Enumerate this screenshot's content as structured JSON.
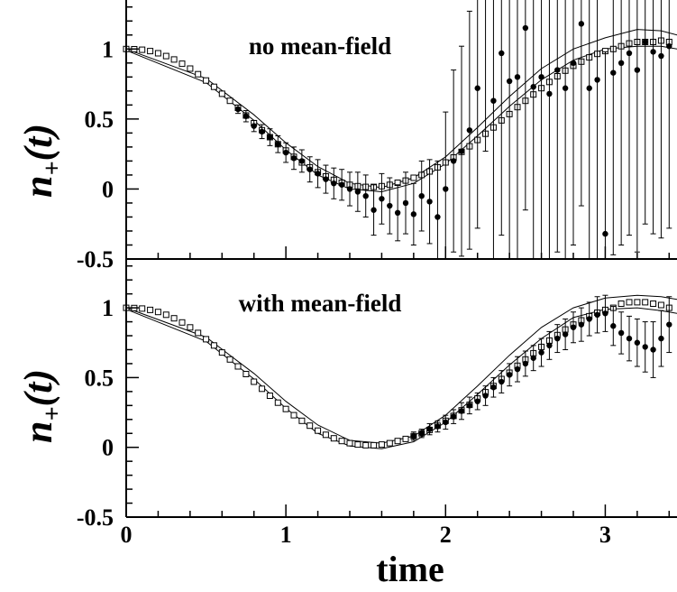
{
  "chart_data": [
    {
      "type": "scatter",
      "annotation": "no mean-field",
      "ylabel": "n+(t)",
      "ylabel_base": "n",
      "ylabel_sub": "+",
      "ylabel_rest": "(t)",
      "xlim": [
        0,
        3.5
      ],
      "ylim": [
        -0.5,
        1.35
      ],
      "yticks": [
        "-0.5",
        "0",
        "0.5",
        "1"
      ],
      "band": {
        "x": [
          0,
          0.5,
          0.8,
          1.0,
          1.2,
          1.4,
          1.6,
          1.8,
          2.0,
          2.2,
          2.4,
          2.6,
          2.8,
          3.0,
          3.2,
          3.35,
          3.45,
          3.5
        ],
        "upper": [
          1.0,
          0.79,
          0.53,
          0.33,
          0.16,
          0.04,
          0.01,
          0.08,
          0.23,
          0.44,
          0.66,
          0.86,
          1.0,
          1.08,
          1.14,
          1.13,
          1.1,
          1.08
        ],
        "lower": [
          0.99,
          0.76,
          0.49,
          0.28,
          0.1,
          0.0,
          -0.02,
          0.04,
          0.18,
          0.38,
          0.59,
          0.78,
          0.92,
          1.0,
          1.02,
          1.02,
          1.0,
          0.98
        ]
      },
      "squares": {
        "x": [
          0,
          0.05,
          0.1,
          0.15,
          0.2,
          0.25,
          0.3,
          0.35,
          0.4,
          0.45,
          0.5,
          0.55,
          0.6,
          0.65,
          0.7,
          0.75,
          0.8,
          0.85,
          0.9,
          0.95,
          1.0,
          1.05,
          1.1,
          1.15,
          1.2,
          1.25,
          1.3,
          1.35,
          1.4,
          1.45,
          1.5,
          1.55,
          1.6,
          1.65,
          1.7,
          1.75,
          1.8,
          1.85,
          1.9,
          1.95,
          2.0,
          2.05,
          2.1,
          2.15,
          2.2,
          2.25,
          2.3,
          2.35,
          2.4,
          2.45,
          2.5,
          2.55,
          2.6,
          2.65,
          2.7,
          2.75,
          2.8,
          2.85,
          2.9,
          2.95,
          3.0,
          3.05,
          3.1,
          3.15,
          3.2,
          3.25,
          3.3,
          3.35,
          3.4,
          3.45
        ],
        "y": [
          1.0,
          0.999,
          0.995,
          0.985,
          0.97,
          0.95,
          0.925,
          0.895,
          0.86,
          0.82,
          0.775,
          0.73,
          0.68,
          0.63,
          0.58,
          0.525,
          0.47,
          0.42,
          0.37,
          0.32,
          0.275,
          0.23,
          0.19,
          0.155,
          0.12,
          0.09,
          0.065,
          0.045,
          0.03,
          0.02,
          0.015,
          0.015,
          0.02,
          0.03,
          0.045,
          0.06,
          0.08,
          0.1,
          0.125,
          0.155,
          0.19,
          0.225,
          0.265,
          0.305,
          0.35,
          0.395,
          0.44,
          0.49,
          0.535,
          0.585,
          0.63,
          0.675,
          0.72,
          0.765,
          0.805,
          0.845,
          0.88,
          0.91,
          0.94,
          0.965,
          0.985,
          1.0,
          1.02,
          1.04,
          1.05,
          1.05,
          1.05,
          1.06,
          1.05,
          1.03
        ]
      },
      "points": {
        "x": [
          0.7,
          0.75,
          0.8,
          0.85,
          0.9,
          0.95,
          1.0,
          1.05,
          1.1,
          1.15,
          1.2,
          1.25,
          1.3,
          1.35,
          1.4,
          1.45,
          1.5,
          1.55,
          1.6,
          1.65,
          1.7,
          1.75,
          1.8,
          1.85,
          1.9,
          1.95,
          2.0,
          2.05,
          2.1,
          2.15,
          2.2,
          2.25,
          2.3,
          2.35,
          2.4,
          2.45,
          2.5,
          2.55,
          2.6,
          2.65,
          2.7,
          2.75,
          2.8,
          2.85,
          2.9,
          2.95,
          3.0,
          3.05,
          3.1,
          3.15,
          3.2,
          3.25,
          3.3,
          3.35,
          3.4,
          3.45
        ],
        "y": [
          0.57,
          0.52,
          0.45,
          0.41,
          0.37,
          0.32,
          0.26,
          0.22,
          0.2,
          0.14,
          0.11,
          0.07,
          0.04,
          0.03,
          0.0,
          -0.02,
          -0.05,
          -0.15,
          -0.07,
          -0.12,
          -0.17,
          -0.1,
          -0.18,
          -0.05,
          -0.09,
          -0.2,
          0.0,
          0.2,
          0.27,
          0.42,
          0.72,
          1.37,
          0.63,
          0.97,
          0.77,
          0.8,
          1.15,
          0.73,
          0.8,
          0.68,
          0.85,
          0.72,
          0.9,
          1.18,
          0.72,
          0.78,
          -0.32,
          0.83,
          0.9,
          0.97,
          0.85,
          1.05,
          0.98,
          0.95,
          1.02,
          1.0
        ],
        "err": [
          0.03,
          0.04,
          0.04,
          0.05,
          0.06,
          0.06,
          0.07,
          0.08,
          0.08,
          0.09,
          0.1,
          0.1,
          0.11,
          0.11,
          0.12,
          0.14,
          0.15,
          0.18,
          0.18,
          0.2,
          0.2,
          0.22,
          0.22,
          0.25,
          0.3,
          0.4,
          0.55,
          0.65,
          0.75,
          0.85,
          1.0,
          1.1,
          1.2,
          1.3,
          1.3,
          1.3,
          1.3,
          1.3,
          1.3,
          1.3,
          1.3,
          1.3,
          1.3,
          1.3,
          1.3,
          1.3,
          1.3,
          1.3,
          1.3,
          1.3,
          1.3,
          1.3,
          1.3,
          1.3,
          1.3,
          1.3
        ]
      }
    },
    {
      "type": "scatter",
      "annotation": "with mean-field",
      "ylabel": "n+(t)",
      "ylabel_base": "n",
      "ylabel_sub": "+",
      "ylabel_rest": "(t)",
      "xlabel": "time",
      "xlim": [
        0,
        3.5
      ],
      "ylim": [
        -0.5,
        1.35
      ],
      "yticks": [
        "-0.5",
        "0",
        "0.5",
        "1"
      ],
      "xticks": [
        "0",
        "1",
        "2",
        "3"
      ],
      "band": {
        "x": [
          0,
          0.5,
          0.8,
          1.0,
          1.2,
          1.4,
          1.6,
          1.8,
          2.0,
          2.2,
          2.4,
          2.6,
          2.8,
          3.0,
          3.2,
          3.35,
          3.45,
          3.5
        ],
        "upper": [
          1.0,
          0.79,
          0.53,
          0.33,
          0.16,
          0.05,
          0.03,
          0.08,
          0.23,
          0.44,
          0.66,
          0.86,
          1.0,
          1.07,
          1.09,
          1.08,
          1.06,
          1.05
        ],
        "lower": [
          0.99,
          0.76,
          0.49,
          0.28,
          0.1,
          0.01,
          -0.01,
          0.04,
          0.18,
          0.38,
          0.59,
          0.78,
          0.93,
          0.99,
          1.0,
          0.98,
          0.96,
          0.95
        ]
      },
      "squares": {
        "x": [
          0,
          0.05,
          0.1,
          0.15,
          0.2,
          0.25,
          0.3,
          0.35,
          0.4,
          0.45,
          0.5,
          0.55,
          0.6,
          0.65,
          0.7,
          0.75,
          0.8,
          0.85,
          0.9,
          0.95,
          1.0,
          1.05,
          1.1,
          1.15,
          1.2,
          1.25,
          1.3,
          1.35,
          1.4,
          1.45,
          1.5,
          1.55,
          1.6,
          1.65,
          1.7,
          1.75,
          1.8,
          1.85,
          1.9,
          1.95,
          2.0,
          2.05,
          2.1,
          2.15,
          2.2,
          2.25,
          2.3,
          2.35,
          2.4,
          2.45,
          2.5,
          2.55,
          2.6,
          2.65,
          2.7,
          2.75,
          2.8,
          2.85,
          2.9,
          2.95,
          3.0,
          3.05,
          3.1,
          3.15,
          3.2,
          3.25,
          3.3,
          3.35,
          3.4,
          3.45
        ],
        "y": [
          1.0,
          0.999,
          0.995,
          0.985,
          0.97,
          0.95,
          0.925,
          0.895,
          0.86,
          0.82,
          0.775,
          0.73,
          0.68,
          0.63,
          0.58,
          0.525,
          0.47,
          0.42,
          0.37,
          0.32,
          0.275,
          0.23,
          0.19,
          0.155,
          0.12,
          0.09,
          0.065,
          0.045,
          0.03,
          0.02,
          0.015,
          0.015,
          0.02,
          0.03,
          0.045,
          0.06,
          0.08,
          0.1,
          0.125,
          0.155,
          0.19,
          0.225,
          0.265,
          0.305,
          0.35,
          0.395,
          0.44,
          0.49,
          0.535,
          0.585,
          0.63,
          0.675,
          0.72,
          0.765,
          0.805,
          0.845,
          0.88,
          0.91,
          0.94,
          0.965,
          0.985,
          1.0,
          1.03,
          1.04,
          1.04,
          1.04,
          1.03,
          1.02,
          1.0,
          0.98
        ]
      },
      "points": {
        "x": [
          1.8,
          1.85,
          1.9,
          1.95,
          2.0,
          2.05,
          2.1,
          2.15,
          2.2,
          2.25,
          2.3,
          2.35,
          2.4,
          2.45,
          2.5,
          2.55,
          2.6,
          2.65,
          2.7,
          2.75,
          2.8,
          2.85,
          2.9,
          2.95,
          3.0,
          3.05,
          3.1,
          3.15,
          3.2,
          3.25,
          3.3,
          3.35,
          3.4,
          3.45
        ],
        "y": [
          0.08,
          0.1,
          0.13,
          0.15,
          0.18,
          0.22,
          0.26,
          0.3,
          0.33,
          0.37,
          0.43,
          0.47,
          0.52,
          0.56,
          0.6,
          0.64,
          0.68,
          0.73,
          0.78,
          0.81,
          0.86,
          0.88,
          0.92,
          0.95,
          0.96,
          0.87,
          0.82,
          0.78,
          0.75,
          0.72,
          0.7,
          0.78,
          0.88,
          0.85
        ],
        "err": [
          0.03,
          0.03,
          0.04,
          0.04,
          0.05,
          0.05,
          0.06,
          0.06,
          0.06,
          0.07,
          0.07,
          0.08,
          0.08,
          0.09,
          0.09,
          0.09,
          0.1,
          0.1,
          0.1,
          0.11,
          0.11,
          0.12,
          0.12,
          0.13,
          0.13,
          0.14,
          0.15,
          0.16,
          0.17,
          0.18,
          0.2,
          0.2,
          0.2,
          0.2
        ]
      }
    }
  ]
}
